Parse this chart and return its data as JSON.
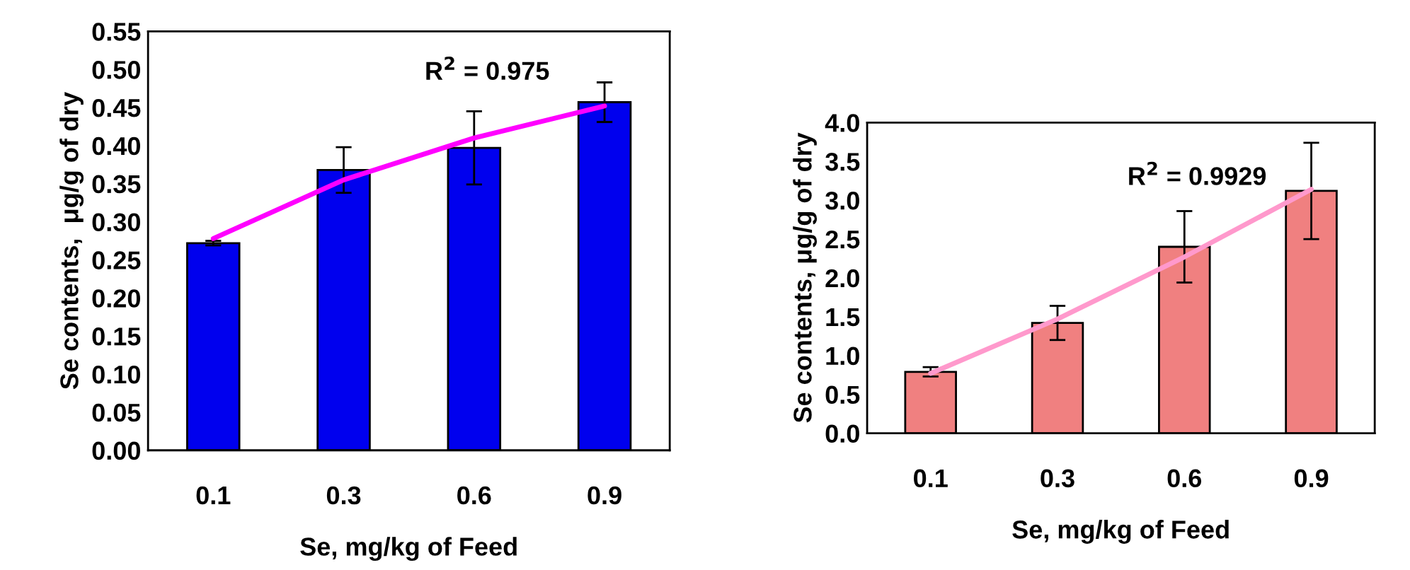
{
  "chart_data": [
    {
      "type": "bar",
      "categories": [
        "0.1",
        "0.3",
        "0.6",
        "0.9"
      ],
      "xlabel": "Se, mg/kg of Feed",
      "ylabel": "Se contents,  μg/g of dry",
      "series": [
        {
          "color": "#0000ee",
          "values": [
            0.272,
            0.368,
            0.397,
            0.457
          ],
          "errors": [
            0.003,
            0.03,
            0.048,
            0.026
          ]
        },
        {
          "type": "line",
          "color": "#ff00ff",
          "x": [
            "0.1",
            "0.3",
            "0.6",
            "0.9"
          ],
          "values": [
            0.278,
            0.355,
            0.41,
            0.452
          ]
        }
      ],
      "ylim": [
        0,
        0.55
      ],
      "yticks": [
        {
          "value": 0,
          "label": "0.00"
        },
        {
          "value": 0.05,
          "label": "0.05"
        },
        {
          "value": 0.1,
          "label": "0.10"
        },
        {
          "value": 0.15,
          "label": "0.15"
        },
        {
          "value": 0.2,
          "label": "0.20"
        },
        {
          "value": 0.25,
          "label": "0.25"
        },
        {
          "value": 0.3,
          "label": "0.30"
        },
        {
          "value": 0.35,
          "label": "0.35"
        },
        {
          "value": 0.4,
          "label": "0.40"
        },
        {
          "value": 0.45,
          "label": "0.45"
        },
        {
          "value": 0.5,
          "label": "0.50"
        },
        {
          "value": 0.55,
          "label": "0.55"
        }
      ],
      "annotations": [
        "R$^{2}$ = 0.975"
      ],
      "grid": false,
      "legend": false
    },
    {
      "type": "bar",
      "categories": [
        "0.1",
        "0.3",
        "0.6",
        "0.9"
      ],
      "xlabel": "Se, mg/kg of Feed",
      "ylabel": "Se contents, μg/g of dry",
      "series": [
        {
          "color": "#f08080",
          "values": [
            0.79,
            1.42,
            2.4,
            3.12
          ],
          "errors": [
            0.06,
            0.22,
            0.46,
            0.62
          ]
        },
        {
          "type": "line",
          "color": "#ff99cc",
          "x": [
            "0.1",
            "0.3",
            "0.6",
            "0.9"
          ],
          "values": [
            0.77,
            1.47,
            2.27,
            3.14
          ]
        }
      ],
      "ylim": [
        0,
        4
      ],
      "yticks": [
        {
          "value": 0,
          "label": "0.0"
        },
        {
          "value": 0.5,
          "label": "0.5"
        },
        {
          "value": 1,
          "label": "1.0"
        },
        {
          "value": 1.5,
          "label": "1.5"
        },
        {
          "value": 2,
          "label": "2.0"
        },
        {
          "value": 2.5,
          "label": "2.5"
        },
        {
          "value": 3,
          "label": "3.0"
        },
        {
          "value": 3.5,
          "label": "3.5"
        },
        {
          "value": 4,
          "label": "4.0"
        }
      ],
      "annotations": [
        "R$^{2}$ = 0.9929"
      ],
      "grid": false,
      "legend": false
    }
  ]
}
